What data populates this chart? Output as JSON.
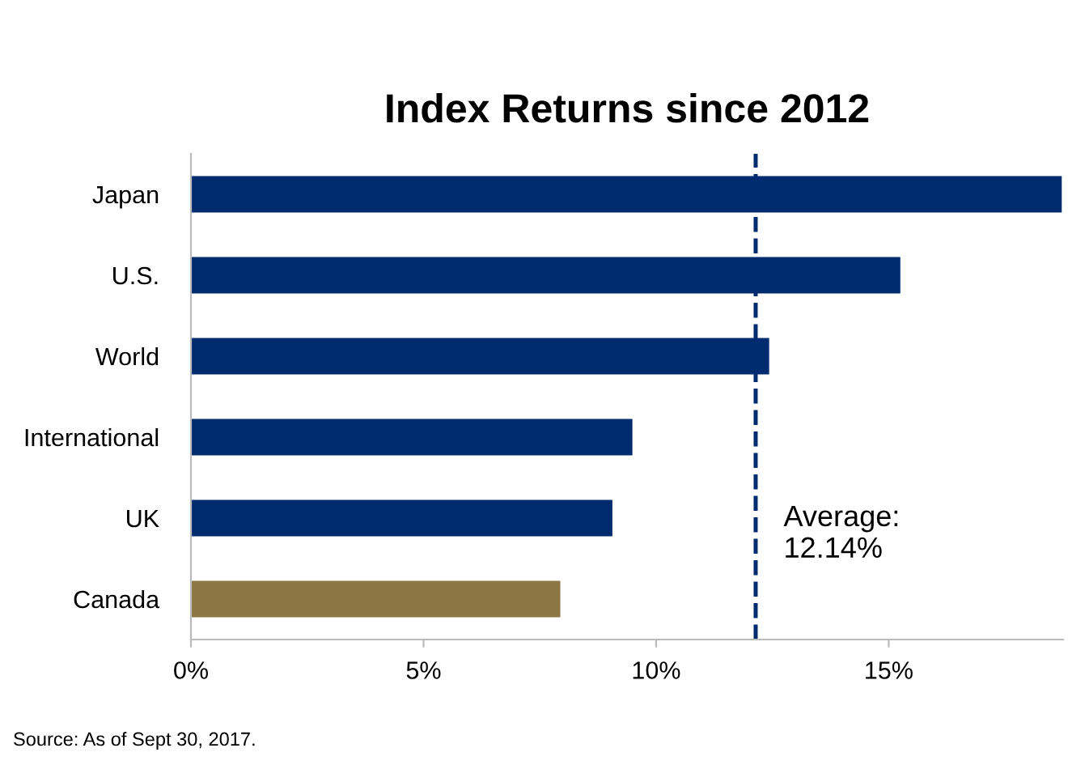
{
  "chart_data": {
    "type": "bar",
    "orientation": "horizontal",
    "title": "Index Returns since 2012",
    "categories": [
      "Japan",
      "U.S.",
      "World",
      "International",
      "UK",
      "Canada"
    ],
    "values": [
      18.72,
      15.25,
      12.43,
      9.49,
      9.06,
      7.94
    ],
    "colors": [
      "#002b6f",
      "#002b6f",
      "#002b6f",
      "#002b6f",
      "#002b6f",
      "#8b7743"
    ],
    "xlim": [
      0,
      18.75
    ],
    "xticks": [
      {
        "value": 0,
        "label": "0%"
      },
      {
        "value": 5,
        "label": "5%"
      },
      {
        "value": 10,
        "label": "10%"
      },
      {
        "value": 15,
        "label": "15%"
      }
    ],
    "grid": false,
    "legend": false,
    "ref_lines": [
      {
        "axis": "x",
        "value": 12.14,
        "label": "Average:\n12.14%",
        "color": "#002b6f",
        "line_style": "dashed"
      }
    ],
    "annotations": [
      "Source: As of Sept 30, 2017."
    ]
  }
}
